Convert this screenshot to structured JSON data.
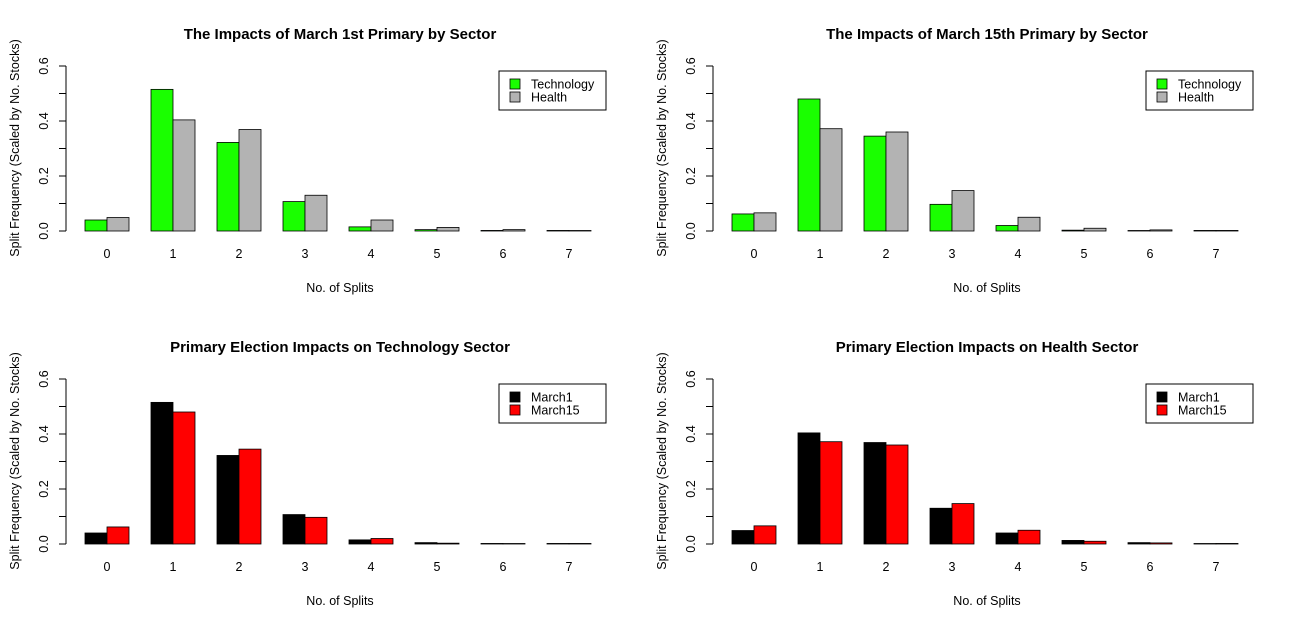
{
  "chart_data": [
    {
      "type": "bar",
      "title": "The Impacts of March 1st Primary by Sector",
      "xlabel": "No. of Splits",
      "ylabel": "Split Frequency (Scaled by No. Stocks)",
      "categories": [
        "0",
        "1",
        "2",
        "3",
        "4",
        "5",
        "6",
        "7"
      ],
      "yticks": [
        "0.0",
        "0.2",
        "0.4",
        "0.6"
      ],
      "ylim": [
        0,
        0.6
      ],
      "legend_position": "top-right",
      "series": [
        {
          "name": "Technology",
          "color": "#1aff00",
          "values": [
            0.04,
            0.515,
            0.322,
            0.107,
            0.015,
            0.005,
            0.002,
            0.002
          ]
        },
        {
          "name": "Health",
          "color": "#b3b3b3",
          "values": [
            0.049,
            0.404,
            0.369,
            0.13,
            0.04,
            0.013,
            0.005,
            0.001
          ]
        }
      ]
    },
    {
      "type": "bar",
      "title": "The Impacts of March 15th Primary by Sector",
      "xlabel": "No. of Splits",
      "ylabel": "Split Frequency (Scaled by No. Stocks)",
      "categories": [
        "0",
        "1",
        "2",
        "3",
        "4",
        "5",
        "6",
        "7"
      ],
      "yticks": [
        "0.0",
        "0.2",
        "0.4",
        "0.6"
      ],
      "ylim": [
        0,
        0.6
      ],
      "legend_position": "top-right",
      "series": [
        {
          "name": "Technology",
          "color": "#1aff00",
          "values": [
            0.062,
            0.48,
            0.345,
            0.097,
            0.02,
            0.003,
            0.001,
            0.002
          ]
        },
        {
          "name": "Health",
          "color": "#b3b3b3",
          "values": [
            0.066,
            0.372,
            0.36,
            0.147,
            0.05,
            0.01,
            0.004,
            0.002
          ]
        }
      ]
    },
    {
      "type": "bar",
      "title": "Primary Election Impacts on Technology Sector",
      "xlabel": "No. of Splits",
      "ylabel": "Split Frequency (Scaled by No. Stocks)",
      "categories": [
        "0",
        "1",
        "2",
        "3",
        "4",
        "5",
        "6",
        "7"
      ],
      "yticks": [
        "0.0",
        "0.2",
        "0.4",
        "0.6"
      ],
      "ylim": [
        0,
        0.6
      ],
      "legend_position": "top-right",
      "series": [
        {
          "name": "March1",
          "color": "#000000",
          "values": [
            0.04,
            0.515,
            0.322,
            0.107,
            0.015,
            0.005,
            0.002,
            0.002
          ]
        },
        {
          "name": "March15",
          "color": "#ff0000",
          "values": [
            0.062,
            0.48,
            0.345,
            0.097,
            0.02,
            0.003,
            0.001,
            0.002
          ]
        }
      ]
    },
    {
      "type": "bar",
      "title": "Primary Election Impacts on Health Sector",
      "xlabel": "No. of Splits",
      "ylabel": "Split Frequency (Scaled by No. Stocks)",
      "categories": [
        "0",
        "1",
        "2",
        "3",
        "4",
        "5",
        "6",
        "7"
      ],
      "yticks": [
        "0.0",
        "0.2",
        "0.4",
        "0.6"
      ],
      "ylim": [
        0,
        0.6
      ],
      "legend_position": "top-right",
      "series": [
        {
          "name": "March1",
          "color": "#000000",
          "values": [
            0.049,
            0.404,
            0.369,
            0.13,
            0.04,
            0.013,
            0.005,
            0.001
          ]
        },
        {
          "name": "March15",
          "color": "#ff0000",
          "values": [
            0.066,
            0.372,
            0.36,
            0.147,
            0.05,
            0.01,
            0.004,
            0.002
          ]
        }
      ]
    }
  ]
}
